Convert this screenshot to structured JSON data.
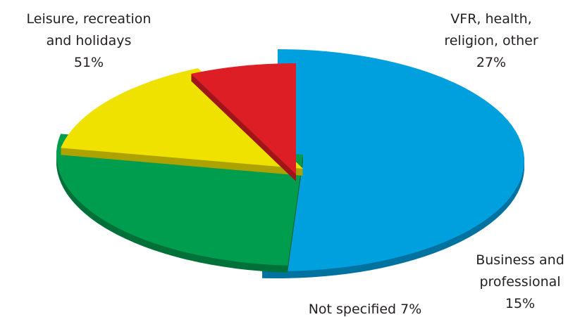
{
  "chart_data": {
    "type": "pie",
    "style": "3d-exploded",
    "title": "",
    "slices": [
      {
        "name": "Leisure, recreation and holidays",
        "value": 51,
        "label_lines": [
          "Leisure, recreation",
          "and holidays",
          "51%"
        ],
        "color": "#009fde"
      },
      {
        "name": "VFR, health, religion, other",
        "value": 27,
        "label_lines": [
          "VFR, health,",
          "religion, other",
          "27%"
        ],
        "color": "#009d4f"
      },
      {
        "name": "Business and professional",
        "value": 15,
        "label_lines": [
          "Business and",
          "professional",
          "15%"
        ],
        "color": "#f0e200"
      },
      {
        "name": "Not specified",
        "value": 7,
        "label_lines": [
          "Not specified 7%"
        ],
        "color": "#dd1e25"
      }
    ]
  }
}
